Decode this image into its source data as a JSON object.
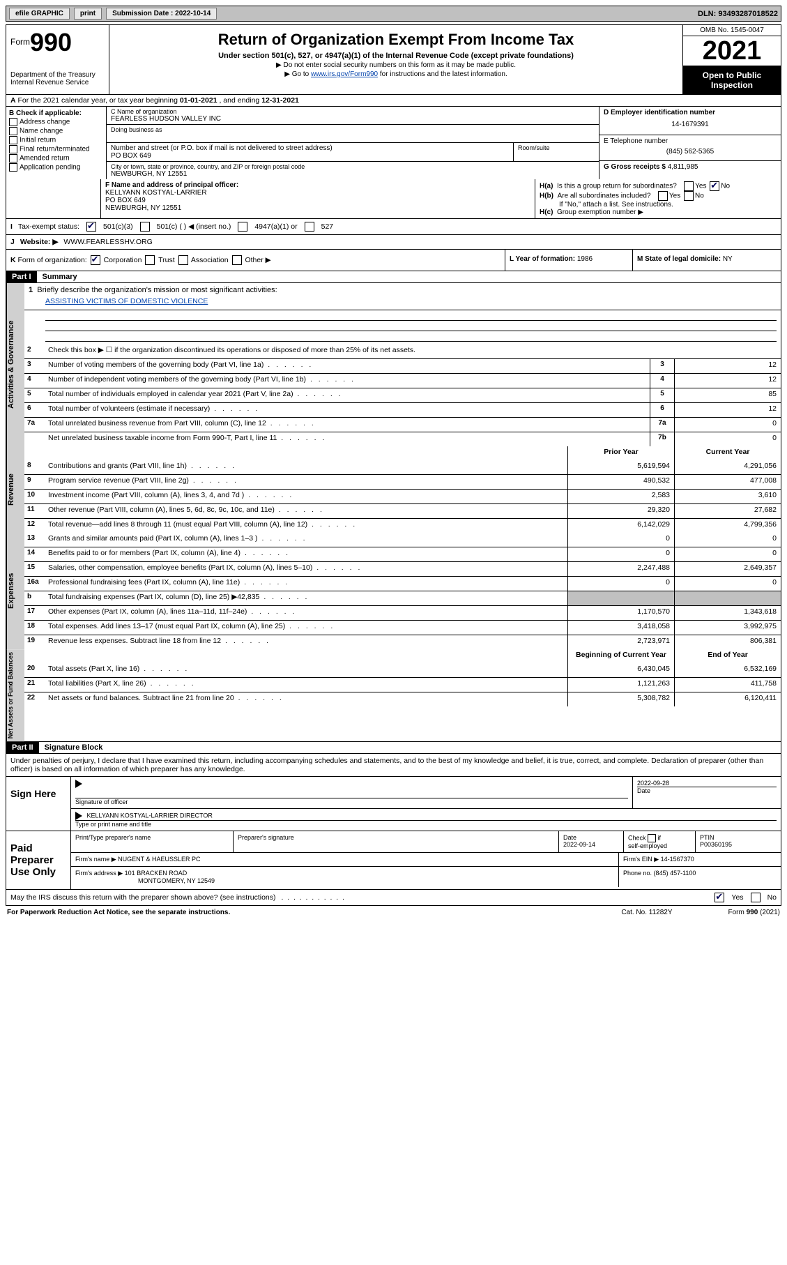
{
  "topbar": {
    "efile": "efile GRAPHIC",
    "print": "print",
    "subdate_label": "Submission Date :",
    "subdate_value": "2022-10-14",
    "dln_label": "DLN:",
    "dln_value": "93493287018522"
  },
  "header": {
    "form_prefix": "Form",
    "form_number": "990",
    "title": "Return of Organization Exempt From Income Tax",
    "sub1": "Under section 501(c), 527, or 4947(a)(1) of the Internal Revenue Code (except private foundations)",
    "sub2": "▶ Do not enter social security numbers on this form as it may be made public.",
    "sub3_prefix": "▶ Go to ",
    "sub3_link": "www.irs.gov/Form990",
    "sub3_suffix": " for instructions and the latest information.",
    "dept": "Department of the Treasury Internal Revenue Service",
    "omb": "OMB No. 1545-0047",
    "year": "2021",
    "open": "Open to Public Inspection"
  },
  "row_a": {
    "prefix": "A",
    "text": "For the 2021 calendar year, or tax year beginning ",
    "begin": "01-01-2021",
    "mid": " , and ending ",
    "end": "12-31-2021"
  },
  "col_b": {
    "label": "B Check if applicable:",
    "items": [
      "Address change",
      "Name change",
      "Initial return",
      "Final return/terminated",
      "Amended return",
      "Application pending"
    ]
  },
  "col_c": {
    "name_lbl": "C Name of organization",
    "name_val": "FEARLESS HUDSON VALLEY INC",
    "dba_lbl": "Doing business as",
    "street_lbl": "Number and street (or P.O. box if mail is not delivered to street address)",
    "room_lbl": "Room/suite",
    "street_val": "PO BOX 649",
    "city_lbl": "City or town, state or province, country, and ZIP or foreign postal code",
    "city_val": "NEWBURGH, NY  12551"
  },
  "col_d": {
    "ein_lbl": "D Employer identification number",
    "ein_val": "14-1679391",
    "phone_lbl": "E Telephone number",
    "phone_val": "(845) 562-5365",
    "gross_lbl": "G Gross receipts $",
    "gross_val": "4,811,985"
  },
  "row_f": {
    "f_lbl": "F Name and address of principal officer:",
    "f_name": "KELLYANN KOSTYAL-LARRIER",
    "f_addr1": "PO BOX 649",
    "f_addr2": "NEWBURGH, NY  12551",
    "ha_lbl": "H(a)",
    "ha_text": "Is this a group return for subordinates?",
    "hb_lbl": "H(b)",
    "hb_text": "Are all subordinates included?",
    "hb_note": "If \"No,\" attach a list. See instructions.",
    "hc_lbl": "H(c)",
    "hc_text": "Group exemption number ▶",
    "yes": "Yes",
    "no": "No"
  },
  "row_i": {
    "label": "I",
    "text": "Tax-exempt status:",
    "opt1": "501(c)(3)",
    "opt2": "501(c) (  ) ◀ (insert no.)",
    "opt3": "4947(a)(1) or",
    "opt4": "527"
  },
  "row_j": {
    "label": "J",
    "text": "Website: ▶",
    "value": "WWW.FEARLESSHV.ORG"
  },
  "row_k": {
    "label": "K",
    "text": "Form of organization:",
    "opts": [
      "Corporation",
      "Trust",
      "Association",
      "Other ▶"
    ],
    "l_text": "L Year of formation:",
    "l_val": "1986",
    "m_text": "M State of legal domicile:",
    "m_val": "NY"
  },
  "part1": {
    "hdr": "Part I",
    "title": "Summary",
    "line1_lbl": "1",
    "line1_text": "Briefly describe the organization's mission or most significant activities:",
    "mission": "ASSISTING VICTIMS OF DOMESTIC VIOLENCE",
    "line2_text": "Check this box ▶        if the organization discontinued its operations or disposed of more than 25% of its net assets.",
    "prior_year": "Prior Year",
    "current_year": "Current Year",
    "begin_year": "Beginning of Current Year",
    "end_year": "End of Year"
  },
  "governance": {
    "label": "Activities & Governance",
    "rows": [
      {
        "n": "2",
        "d": "Check this box ▶ ☐ if the organization discontinued its operations or disposed of more than 25% of its net assets.",
        "box": "",
        "v": ""
      },
      {
        "n": "3",
        "d": "Number of voting members of the governing body (Part VI, line 1a)",
        "box": "3",
        "v": "12"
      },
      {
        "n": "4",
        "d": "Number of independent voting members of the governing body (Part VI, line 1b)",
        "box": "4",
        "v": "12"
      },
      {
        "n": "5",
        "d": "Total number of individuals employed in calendar year 2021 (Part V, line 2a)",
        "box": "5",
        "v": "85"
      },
      {
        "n": "6",
        "d": "Total number of volunteers (estimate if necessary)",
        "box": "6",
        "v": "12"
      },
      {
        "n": "7a",
        "d": "Total unrelated business revenue from Part VIII, column (C), line 12",
        "box": "7a",
        "v": "0"
      },
      {
        "n": "",
        "d": "Net unrelated business taxable income from Form 990-T, Part I, line 11",
        "box": "7b",
        "v": "0"
      }
    ]
  },
  "revenue": {
    "label": "Revenue",
    "rows": [
      {
        "n": "8",
        "d": "Contributions and grants (Part VIII, line 1h)",
        "py": "5,619,594",
        "cy": "4,291,056"
      },
      {
        "n": "9",
        "d": "Program service revenue (Part VIII, line 2g)",
        "py": "490,532",
        "cy": "477,008"
      },
      {
        "n": "10",
        "d": "Investment income (Part VIII, column (A), lines 3, 4, and 7d )",
        "py": "2,583",
        "cy": "3,610"
      },
      {
        "n": "11",
        "d": "Other revenue (Part VIII, column (A), lines 5, 6d, 8c, 9c, 10c, and 11e)",
        "py": "29,320",
        "cy": "27,682"
      },
      {
        "n": "12",
        "d": "Total revenue—add lines 8 through 11 (must equal Part VIII, column (A), line 12)",
        "py": "6,142,029",
        "cy": "4,799,356"
      }
    ]
  },
  "expenses": {
    "label": "Expenses",
    "rows": [
      {
        "n": "13",
        "d": "Grants and similar amounts paid (Part IX, column (A), lines 1–3 )",
        "py": "0",
        "cy": "0"
      },
      {
        "n": "14",
        "d": "Benefits paid to or for members (Part IX, column (A), line 4)",
        "py": "0",
        "cy": "0"
      },
      {
        "n": "15",
        "d": "Salaries, other compensation, employee benefits (Part IX, column (A), lines 5–10)",
        "py": "2,247,488",
        "cy": "2,649,357"
      },
      {
        "n": "16a",
        "d": "Professional fundraising fees (Part IX, column (A), line 11e)",
        "py": "0",
        "cy": "0"
      },
      {
        "n": "b",
        "d": "Total fundraising expenses (Part IX, column (D), line 25) ▶42,835",
        "py": "gray",
        "cy": "gray"
      },
      {
        "n": "17",
        "d": "Other expenses (Part IX, column (A), lines 11a–11d, 11f–24e)",
        "py": "1,170,570",
        "cy": "1,343,618"
      },
      {
        "n": "18",
        "d": "Total expenses. Add lines 13–17 (must equal Part IX, column (A), line 25)",
        "py": "3,418,058",
        "cy": "3,992,975"
      },
      {
        "n": "19",
        "d": "Revenue less expenses. Subtract line 18 from line 12",
        "py": "2,723,971",
        "cy": "806,381"
      }
    ]
  },
  "netassets": {
    "label": "Net Assets or Fund Balances",
    "rows": [
      {
        "n": "20",
        "d": "Total assets (Part X, line 16)",
        "py": "6,430,045",
        "cy": "6,532,169"
      },
      {
        "n": "21",
        "d": "Total liabilities (Part X, line 26)",
        "py": "1,121,263",
        "cy": "411,758"
      },
      {
        "n": "22",
        "d": "Net assets or fund balances. Subtract line 21 from line 20",
        "py": "5,308,782",
        "cy": "6,120,411"
      }
    ]
  },
  "part2": {
    "hdr": "Part II",
    "title": "Signature Block",
    "intro": "Under penalties of perjury, I declare that I have examined this return, including accompanying schedules and statements, and to the best of my knowledge and belief, it is true, correct, and complete. Declaration of preparer (other than officer) is based on all information of which preparer has any knowledge."
  },
  "sign": {
    "side": "Sign Here",
    "sig_lbl": "Signature of officer",
    "date_lbl": "Date",
    "date_val": "2022-09-28",
    "name": "KELLYANN KOSTYAL-LARRIER  DIRECTOR",
    "name_lbl": "Type or print name and title"
  },
  "paid": {
    "side": "Paid Preparer Use Only",
    "col1": "Print/Type preparer's name",
    "col2": "Preparer's signature",
    "col3_lbl": "Date",
    "col3_val": "2022-09-14",
    "col4_lbl": "Check ☐ if self-employed",
    "col5_lbl": "PTIN",
    "col5_val": "P00360195",
    "firm_name_lbl": "Firm's name   ▶",
    "firm_name": "NUGENT & HAEUSSLER PC",
    "firm_ein_lbl": "Firm's EIN ▶",
    "firm_ein": "14-1567370",
    "firm_addr_lbl": "Firm's address ▶",
    "firm_addr1": "101 BRACKEN ROAD",
    "firm_addr2": "MONTGOMERY, NY  12549",
    "phone_lbl": "Phone no.",
    "phone_val": "(845) 457-1100"
  },
  "discuss": {
    "text": "May the IRS discuss this return with the preparer shown above? (see instructions)",
    "yes": "Yes",
    "no": "No"
  },
  "footer": {
    "l": "For Paperwork Reduction Act Notice, see the separate instructions.",
    "c": "Cat. No. 11282Y",
    "r": "Form 990 (2021)"
  }
}
